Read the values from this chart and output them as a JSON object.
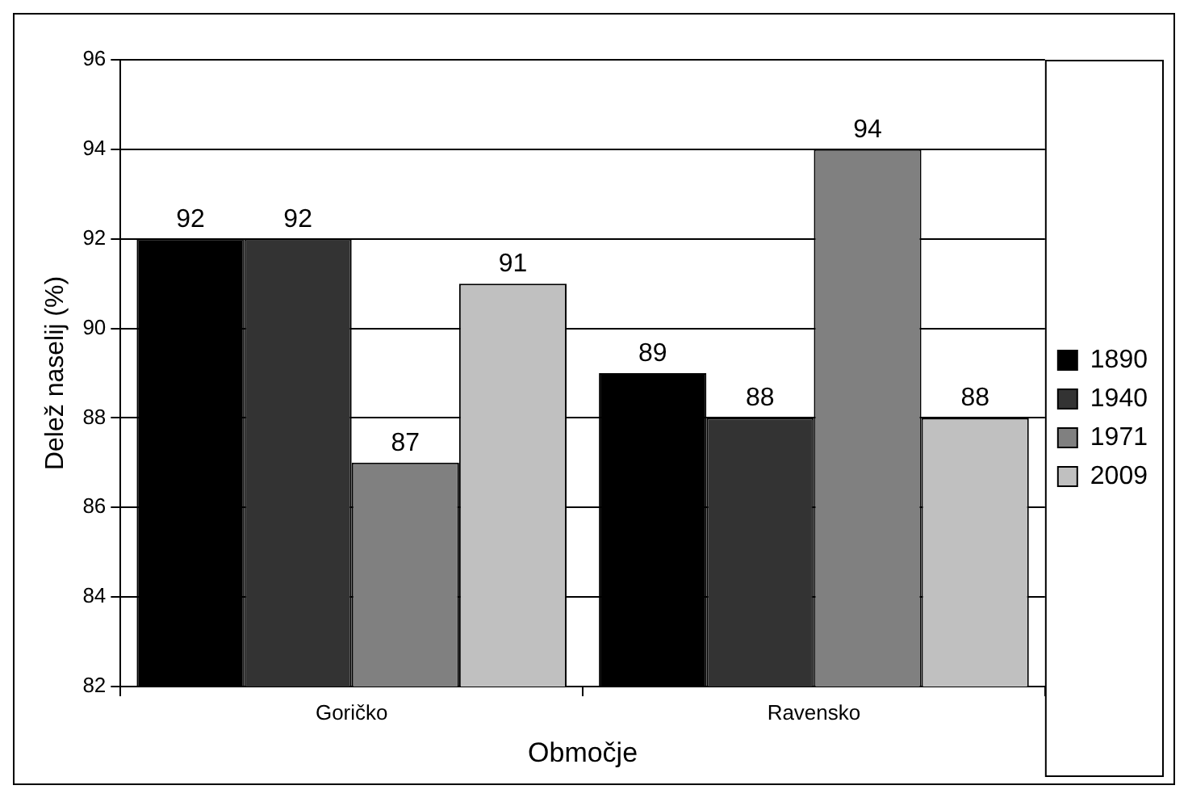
{
  "chart_data": {
    "type": "bar",
    "xlabel": "Območje",
    "ylabel": "Delež naselij (%)",
    "categories": [
      "Goričko",
      "Ravensko"
    ],
    "series": [
      {
        "name": "1890",
        "color": "#000000",
        "values": [
          92,
          89
        ]
      },
      {
        "name": "1940",
        "color": "#333333",
        "values": [
          92,
          88
        ]
      },
      {
        "name": "1971",
        "color": "#808080",
        "values": [
          87,
          94
        ]
      },
      {
        "name": "2009",
        "color": "#c0c0c0",
        "values": [
          91,
          88
        ]
      }
    ],
    "ylim": [
      82,
      96
    ],
    "yticks": [
      82,
      84,
      86,
      88,
      90,
      92,
      94,
      96
    ],
    "grid": "y",
    "legend": "right",
    "data_labels": true
  }
}
